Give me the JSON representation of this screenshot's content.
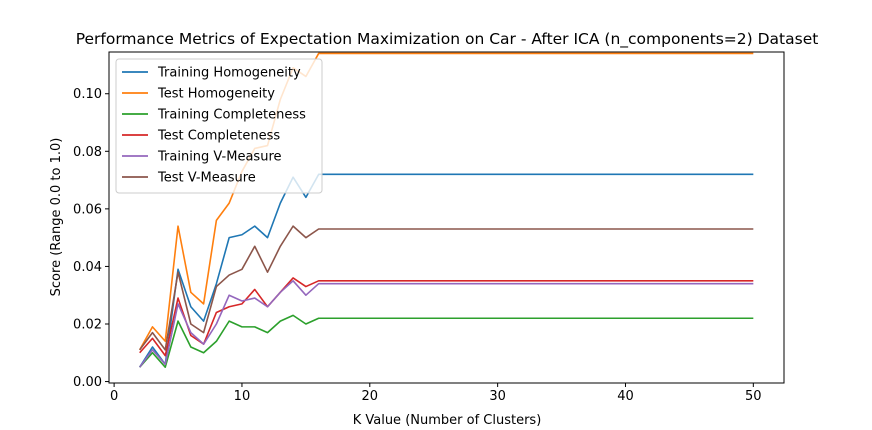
{
  "chart_data": {
    "type": "line",
    "title": "Performance Metrics of Expectation Maximization on Car - After ICA (n_components=2) Dataset",
    "xlabel": "K Value (Number of Clusters)",
    "ylabel": "Score (Range 0.0 to 1.0)",
    "xlim": [
      -0.4,
      52.4
    ],
    "ylim": [
      -0.0005,
      0.1145
    ],
    "xticks": [
      0,
      10,
      20,
      30,
      40,
      50
    ],
    "yticks": [
      0.0,
      0.02,
      0.04,
      0.06,
      0.08,
      0.1
    ],
    "ytick_labels": [
      "0.00",
      "0.02",
      "0.04",
      "0.06",
      "0.08",
      "0.10"
    ],
    "x": [
      2,
      3,
      4,
      5,
      6,
      7,
      8,
      9,
      10,
      11,
      12,
      13,
      14,
      15,
      16,
      17,
      18,
      19,
      20,
      21,
      22,
      23,
      24,
      25,
      26,
      27,
      28,
      29,
      30,
      31,
      32,
      33,
      34,
      35,
      36,
      37,
      38,
      39,
      40,
      41,
      42,
      43,
      44,
      45,
      46,
      47,
      48,
      49,
      50
    ],
    "legend_position": "upper-left",
    "grid": false,
    "series": [
      {
        "name": "Training Homogeneity",
        "color": "#1f77b4",
        "values": [
          0.005,
          0.012,
          0.006,
          0.039,
          0.026,
          0.021,
          0.034,
          0.05,
          0.051,
          0.054,
          0.05,
          0.062,
          0.071,
          0.064,
          0.072,
          0.072,
          0.072,
          0.072,
          0.072,
          0.072,
          0.072,
          0.072,
          0.072,
          0.072,
          0.072,
          0.072,
          0.072,
          0.072,
          0.072,
          0.072,
          0.072,
          0.072,
          0.072,
          0.072,
          0.072,
          0.072,
          0.072,
          0.072,
          0.072,
          0.072,
          0.072,
          0.072,
          0.072,
          0.072,
          0.072,
          0.072,
          0.072,
          0.072,
          0.072
        ]
      },
      {
        "name": "Test Homogeneity",
        "color": "#ff7f0e",
        "values": [
          0.011,
          0.019,
          0.014,
          0.054,
          0.031,
          0.027,
          0.056,
          0.062,
          0.073,
          0.081,
          0.082,
          0.098,
          0.109,
          0.106,
          0.114,
          0.114,
          0.114,
          0.114,
          0.114,
          0.114,
          0.114,
          0.114,
          0.114,
          0.114,
          0.114,
          0.114,
          0.114,
          0.114,
          0.114,
          0.114,
          0.114,
          0.114,
          0.114,
          0.114,
          0.114,
          0.114,
          0.114,
          0.114,
          0.114,
          0.114,
          0.114,
          0.114,
          0.114,
          0.114,
          0.114,
          0.114,
          0.114,
          0.114,
          0.114
        ]
      },
      {
        "name": "Training Completeness",
        "color": "#2ca02c",
        "values": [
          0.005,
          0.01,
          0.005,
          0.021,
          0.012,
          0.01,
          0.014,
          0.021,
          0.019,
          0.019,
          0.017,
          0.021,
          0.023,
          0.02,
          0.022,
          0.022,
          0.022,
          0.022,
          0.022,
          0.022,
          0.022,
          0.022,
          0.022,
          0.022,
          0.022,
          0.022,
          0.022,
          0.022,
          0.022,
          0.022,
          0.022,
          0.022,
          0.022,
          0.022,
          0.022,
          0.022,
          0.022,
          0.022,
          0.022,
          0.022,
          0.022,
          0.022,
          0.022,
          0.022,
          0.022,
          0.022,
          0.022,
          0.022,
          0.022
        ]
      },
      {
        "name": "Test Completeness",
        "color": "#d62728",
        "values": [
          0.01,
          0.015,
          0.009,
          0.029,
          0.016,
          0.013,
          0.024,
          0.026,
          0.027,
          0.032,
          0.026,
          0.031,
          0.036,
          0.033,
          0.035,
          0.035,
          0.035,
          0.035,
          0.035,
          0.035,
          0.035,
          0.035,
          0.035,
          0.035,
          0.035,
          0.035,
          0.035,
          0.035,
          0.035,
          0.035,
          0.035,
          0.035,
          0.035,
          0.035,
          0.035,
          0.035,
          0.035,
          0.035,
          0.035,
          0.035,
          0.035,
          0.035,
          0.035,
          0.035,
          0.035,
          0.035,
          0.035,
          0.035,
          0.035
        ]
      },
      {
        "name": "Training V-Measure",
        "color": "#9467bd",
        "values": [
          0.005,
          0.011,
          0.006,
          0.027,
          0.017,
          0.013,
          0.02,
          0.03,
          0.028,
          0.029,
          0.026,
          0.031,
          0.035,
          0.03,
          0.034,
          0.034,
          0.034,
          0.034,
          0.034,
          0.034,
          0.034,
          0.034,
          0.034,
          0.034,
          0.034,
          0.034,
          0.034,
          0.034,
          0.034,
          0.034,
          0.034,
          0.034,
          0.034,
          0.034,
          0.034,
          0.034,
          0.034,
          0.034,
          0.034,
          0.034,
          0.034,
          0.034,
          0.034,
          0.034,
          0.034,
          0.034,
          0.034,
          0.034,
          0.034
        ]
      },
      {
        "name": "Test V-Measure",
        "color": "#8c564b",
        "values": [
          0.011,
          0.017,
          0.011,
          0.038,
          0.02,
          0.017,
          0.033,
          0.037,
          0.039,
          0.047,
          0.038,
          0.047,
          0.054,
          0.05,
          0.053,
          0.053,
          0.053,
          0.053,
          0.053,
          0.053,
          0.053,
          0.053,
          0.053,
          0.053,
          0.053,
          0.053,
          0.053,
          0.053,
          0.053,
          0.053,
          0.053,
          0.053,
          0.053,
          0.053,
          0.053,
          0.053,
          0.053,
          0.053,
          0.053,
          0.053,
          0.053,
          0.053,
          0.053,
          0.053,
          0.053,
          0.053,
          0.053,
          0.053,
          0.053
        ]
      }
    ]
  }
}
